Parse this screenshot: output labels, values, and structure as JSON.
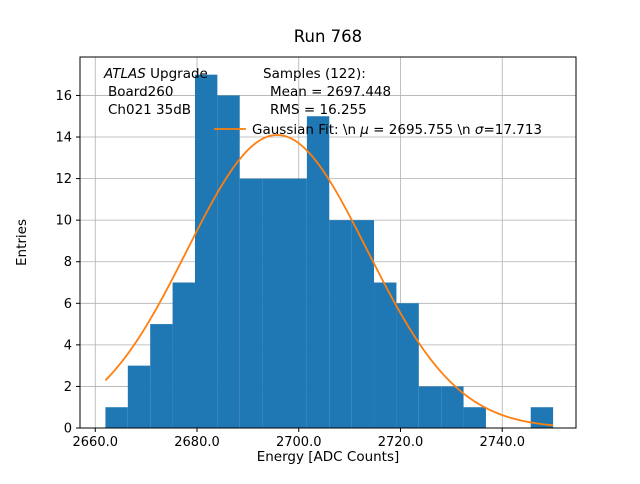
{
  "figure": {
    "background": "#ffffff"
  },
  "chart_data": {
    "type": "bar",
    "subtype": "histogram-with-gaussian-fit",
    "title": "Run 768",
    "xlabel": "Energy [ADC Counts]",
    "ylabel": "Entries",
    "xlim": [
      2657,
      2754.5
    ],
    "ylim": [
      0,
      17.85
    ],
    "xticks": [
      2660,
      2680,
      2700,
      2720,
      2740
    ],
    "xtick_labels": [
      "2660.0",
      "2680.0",
      "2700.0",
      "2720.0",
      "2740.0"
    ],
    "yticks": [
      0,
      2,
      4,
      6,
      8,
      10,
      12,
      14,
      16
    ],
    "grid": true,
    "legend_position": "upper-center-inside",
    "bar_color": "#1f77b4",
    "line_color": "#ff7f0e",
    "grid_color": "#b0b0b0",
    "histogram": {
      "bin_edges": [
        2662.0,
        2666.4,
        2670.8,
        2675.2,
        2679.6,
        2684.0,
        2688.4,
        2692.8,
        2697.2,
        2701.6,
        2706.0,
        2710.4,
        2714.8,
        2719.2,
        2723.6,
        2728.0,
        2732.4,
        2736.8,
        2741.2,
        2745.6,
        2750.0
      ],
      "counts": [
        1,
        3,
        5,
        7,
        17,
        16,
        12,
        12,
        12,
        15,
        10,
        10,
        7,
        6,
        2,
        2,
        1,
        0,
        0,
        1
      ]
    },
    "gaussian_fit": {
      "amplitude": 14.1,
      "mu": 2695.755,
      "sigma": 17.713,
      "x_start": 2662,
      "x_end": 2750
    }
  },
  "annotations": {
    "atlas_italic": "ATLAS",
    "atlas_rest": " Upgrade",
    "board_line": "Board260",
    "channel_line": "Ch021 35dB",
    "samples_line": "Samples (122):",
    "mean_line": "Mean = 2697.448",
    "rms_line": "RMS = 16.255",
    "legend_prefix": "Gaussian Fit: \\n ",
    "legend_mu_symbol": "μ",
    "legend_mu_value": " = 2695.755 \\n ",
    "legend_sigma_symbol": "σ",
    "legend_sigma_value": "=17.713"
  }
}
